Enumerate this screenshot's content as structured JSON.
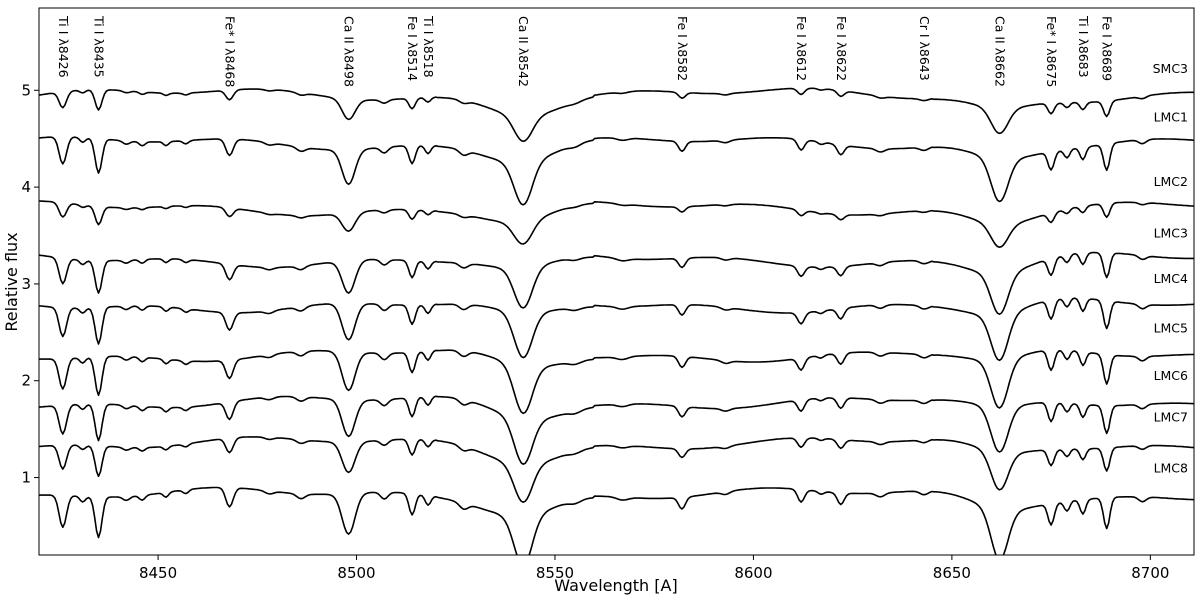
{
  "chart_data": {
    "type": "line",
    "title": "",
    "xlabel": "Wavelength [A]",
    "ylabel": "Relative flux",
    "xlim": [
      8420,
      8711
    ],
    "ylim": [
      0.2,
      5.85
    ],
    "xticks": [
      8450,
      8500,
      8550,
      8600,
      8650,
      8700
    ],
    "yticks": [
      1,
      2,
      3,
      4,
      5
    ],
    "grid": false,
    "legend": "labels at right end of each spectrum",
    "line_color": "#000000",
    "spectral_lines": [
      {
        "label": "Ti I λ8426",
        "x": 8426
      },
      {
        "label": "Ti I λ8435",
        "x": 8435
      },
      {
        "label": "Fe* I λ8468",
        "x": 8468
      },
      {
        "label": "Ca II λ8498",
        "x": 8498
      },
      {
        "label": "Fe I λ8514",
        "x": 8514
      },
      {
        "label": "Ti I λ8518",
        "x": 8518
      },
      {
        "label": "Ca II λ8542",
        "x": 8542
      },
      {
        "label": "Fe I λ8582",
        "x": 8582
      },
      {
        "label": "Fe I λ8612",
        "x": 8612
      },
      {
        "label": "Fe I λ8622",
        "x": 8622
      },
      {
        "label": "Cr I λ8643",
        "x": 8643
      },
      {
        "label": "Ca II λ8662",
        "x": 8662
      },
      {
        "label": "Fe* I λ8675",
        "x": 8675
      },
      {
        "label": "Ti I λ8683",
        "x": 8683
      },
      {
        "label": "Fe I λ8689",
        "x": 8689
      }
    ],
    "series": [
      {
        "name": "SMC3",
        "continuum": 4.95,
        "depth": 0.5
      },
      {
        "name": "LMC1",
        "continuum": 4.45,
        "depth": 0.85
      },
      {
        "name": "LMC2",
        "continuum": 3.78,
        "depth": 0.45
      },
      {
        "name": "LMC3",
        "continuum": 3.25,
        "depth": 0.8
      },
      {
        "name": "LMC4",
        "continuum": 2.78,
        "depth": 0.9
      },
      {
        "name": "LMC5",
        "continuum": 2.27,
        "depth": 0.95
      },
      {
        "name": "LMC6",
        "continuum": 1.78,
        "depth": 0.9
      },
      {
        "name": "LMC7",
        "continuum": 1.35,
        "depth": 0.75
      },
      {
        "name": "LMC8",
        "continuum": 0.82,
        "depth": 1.0
      }
    ]
  }
}
